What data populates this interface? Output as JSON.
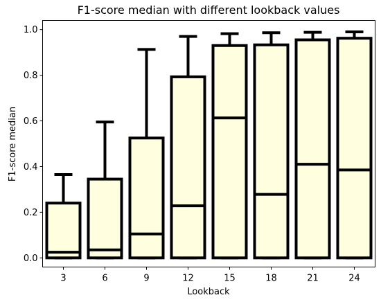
{
  "chart_data": {
    "type": "box",
    "title": "F1-score median with different lookback values",
    "xlabel": "Lookback",
    "ylabel": "F1-score median",
    "categories": [
      "3",
      "6",
      "9",
      "12",
      "15",
      "18",
      "21",
      "24"
    ],
    "ylim": [
      -0.04,
      1.04
    ],
    "yticks": [
      "0.0",
      "0.2",
      "0.4",
      "0.6",
      "0.8",
      "1.0"
    ],
    "grid": false,
    "box_color": "#ffffe0",
    "edge_color": "#000000",
    "boxes": [
      {
        "label": "3",
        "whislo": 0.0,
        "q1": 0.0,
        "med": 0.025,
        "q3": 0.24,
        "whishi": 0.365
      },
      {
        "label": "6",
        "whislo": 0.0,
        "q1": 0.0,
        "med": 0.035,
        "q3": 0.345,
        "whishi": 0.595
      },
      {
        "label": "9",
        "whislo": 0.0,
        "q1": 0.0,
        "med": 0.105,
        "q3": 0.525,
        "whishi": 0.913
      },
      {
        "label": "12",
        "whislo": 0.0,
        "q1": 0.0,
        "med": 0.228,
        "q3": 0.793,
        "whishi": 0.97
      },
      {
        "label": "15",
        "whislo": 0.0,
        "q1": 0.0,
        "med": 0.613,
        "q3": 0.93,
        "whishi": 0.982
      },
      {
        "label": "18",
        "whislo": 0.0,
        "q1": 0.0,
        "med": 0.278,
        "q3": 0.933,
        "whishi": 0.986
      },
      {
        "label": "21",
        "whislo": 0.0,
        "q1": 0.0,
        "med": 0.41,
        "q3": 0.955,
        "whishi": 0.988
      },
      {
        "label": "24",
        "whislo": 0.0,
        "q1": 0.0,
        "med": 0.385,
        "q3": 0.962,
        "whishi": 0.99
      }
    ]
  }
}
